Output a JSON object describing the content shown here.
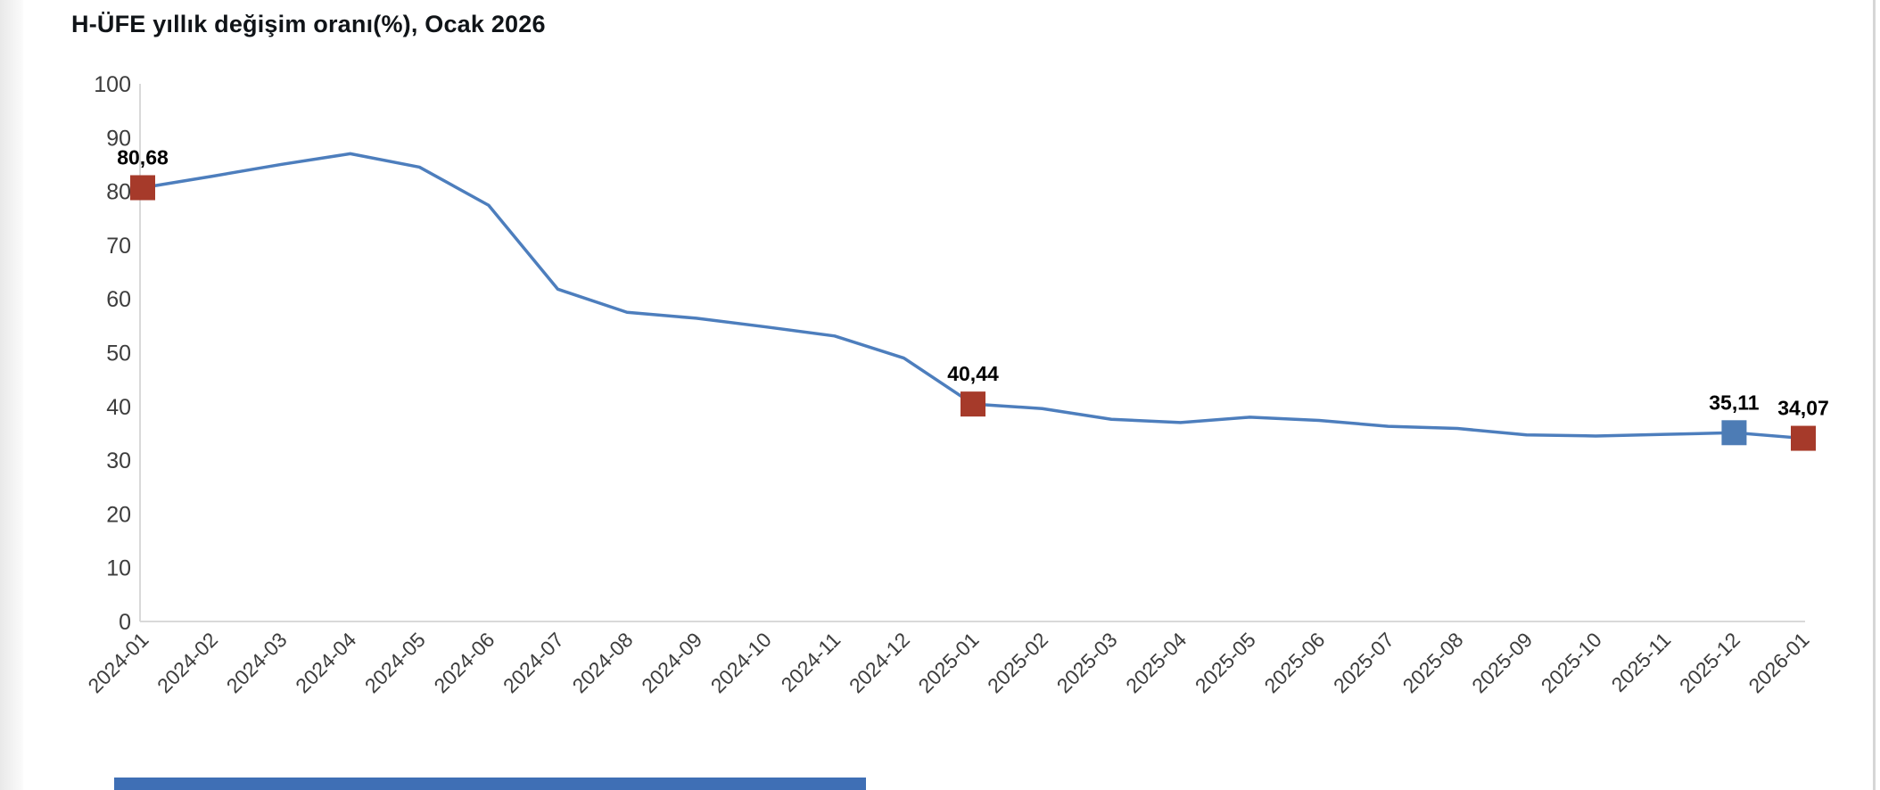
{
  "chart_data": {
    "type": "line",
    "title": "H-ÜFE yıllık değişim oranı(%), Ocak 2026",
    "xlabel": "",
    "ylabel": "",
    "ylim": [
      0,
      100
    ],
    "yticks": [
      0,
      10,
      20,
      30,
      40,
      50,
      60,
      70,
      80,
      90,
      100
    ],
    "grid": false,
    "legend_position": "none",
    "x": [
      "2024-01",
      "2024-02",
      "2024-03",
      "2024-04",
      "2024-05",
      "2024-06",
      "2024-07",
      "2024-08",
      "2024-09",
      "2024-10",
      "2024-11",
      "2024-12",
      "2025-01",
      "2025-02",
      "2025-03",
      "2025-04",
      "2025-05",
      "2025-06",
      "2025-07",
      "2025-08",
      "2025-09",
      "2025-10",
      "2025-11",
      "2025-12",
      "2026-01"
    ],
    "series": [
      {
        "name": "H-ÜFE yıllık değişim oranı (%)",
        "color": "#4d7ebd",
        "values": [
          80.68,
          82.8,
          85.0,
          87.0,
          84.5,
          77.4,
          61.8,
          57.5,
          56.4,
          54.8,
          53.1,
          49.0,
          40.44,
          39.6,
          37.6,
          37.0,
          38.0,
          37.4,
          36.3,
          35.9,
          34.7,
          34.5,
          34.8,
          35.11,
          34.07
        ]
      }
    ],
    "highlighted_points": [
      {
        "x": "2024-01",
        "value": 80.68,
        "label": "80,68",
        "marker_color": "#a63a2a"
      },
      {
        "x": "2025-01",
        "value": 40.44,
        "label": "40,44",
        "marker_color": "#a63a2a"
      },
      {
        "x": "2025-12",
        "value": 35.11,
        "label": "35,11",
        "marker_color": "#4d7cb5"
      },
      {
        "x": "2026-01",
        "value": 34.07,
        "label": "34,07",
        "marker_color": "#a63a2a"
      }
    ],
    "axis_color": "#d9d9d9",
    "tick_label_color": "#3d3d3d",
    "data_label_color": "#000000"
  },
  "footer": {
    "bar_color": "#3f6fb5"
  }
}
